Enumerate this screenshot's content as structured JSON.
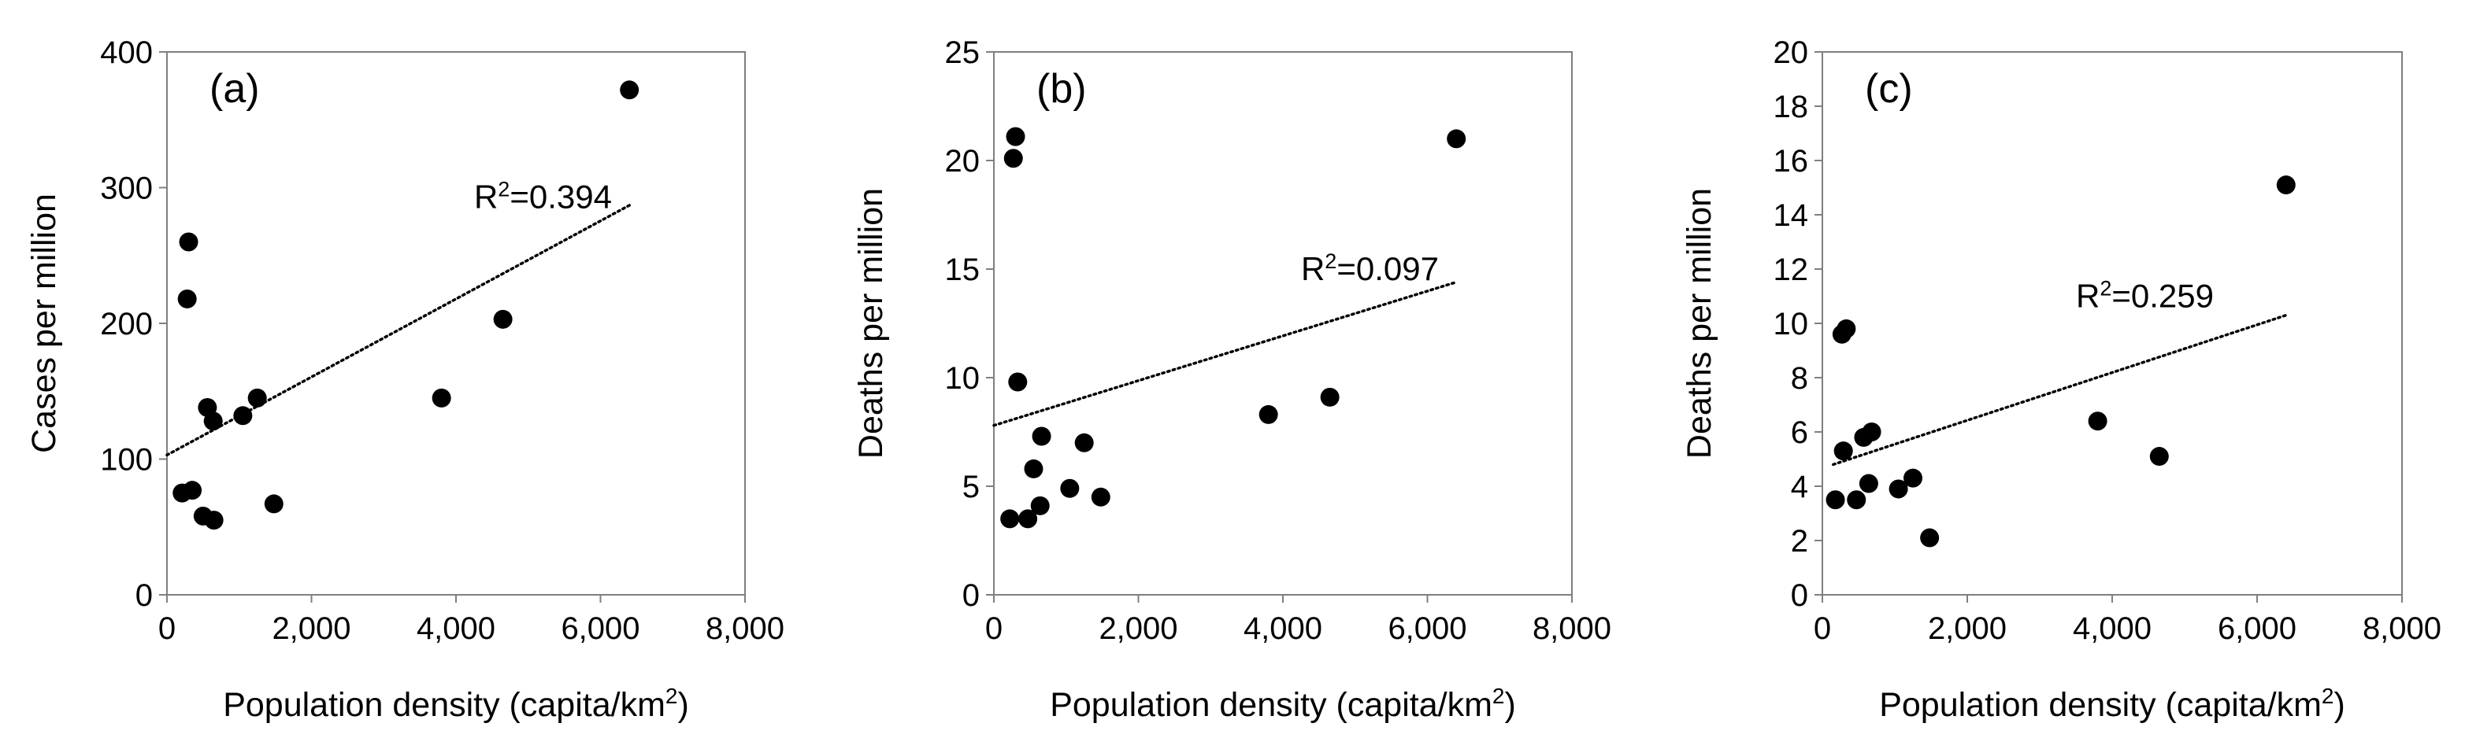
{
  "chart_data": [
    {
      "type": "scatter",
      "panel_label": "(a)",
      "xlabel": "Population density (capita/km",
      "xlabel_sup": "2",
      "xlabel_close": ")",
      "ylabel": "Cases per million",
      "xlim": [
        0,
        8000
      ],
      "ylim": [
        0,
        400
      ],
      "xticks": [
        0,
        2000,
        4000,
        6000,
        8000
      ],
      "xtick_labels": [
        "0",
        "2,000",
        "4,000",
        "6,000",
        "8,000"
      ],
      "yticks": [
        0,
        100,
        200,
        300,
        400
      ],
      "ytick_labels": [
        "0",
        "100",
        "200",
        "300",
        "400"
      ],
      "r2_prefix": "R",
      "r2_sup": "2",
      "r2_value": "=0.394",
      "r2_anchor": [
        4250,
        285
      ],
      "trendline": {
        "x": [
          0,
          6400
        ],
        "y": [
          103,
          287
        ]
      },
      "points": [
        {
          "x": 210,
          "y": 75
        },
        {
          "x": 280,
          "y": 218
        },
        {
          "x": 300,
          "y": 260
        },
        {
          "x": 350,
          "y": 77
        },
        {
          "x": 500,
          "y": 58
        },
        {
          "x": 560,
          "y": 138
        },
        {
          "x": 640,
          "y": 128
        },
        {
          "x": 650,
          "y": 55
        },
        {
          "x": 1050,
          "y": 132
        },
        {
          "x": 1250,
          "y": 145
        },
        {
          "x": 1480,
          "y": 67
        },
        {
          "x": 3800,
          "y": 145
        },
        {
          "x": 4650,
          "y": 203
        },
        {
          "x": 6400,
          "y": 372
        }
      ]
    },
    {
      "type": "scatter",
      "panel_label": "(b)",
      "xlabel": "Population density (capita/km",
      "xlabel_sup": "2",
      "xlabel_close": ")",
      "ylabel": "Deaths per million",
      "xlim": [
        0,
        8000
      ],
      "ylim": [
        0,
        25
      ],
      "xticks": [
        0,
        2000,
        4000,
        6000,
        8000
      ],
      "xtick_labels": [
        "0",
        "2,000",
        "4,000",
        "6,000",
        "8,000"
      ],
      "yticks": [
        0,
        5,
        10,
        15,
        20,
        25
      ],
      "ytick_labels": [
        "0",
        "5",
        "10",
        "15",
        "20",
        "25"
      ],
      "r2_prefix": "R",
      "r2_sup": "2",
      "r2_value": "=0.097",
      "r2_anchor": [
        4250,
        14.5
      ],
      "trendline": {
        "x": [
          0,
          6400
        ],
        "y": [
          7.8,
          14.4
        ]
      },
      "points": [
        {
          "x": 220,
          "y": 3.5
        },
        {
          "x": 270,
          "y": 20.1
        },
        {
          "x": 300,
          "y": 21.1
        },
        {
          "x": 330,
          "y": 9.8
        },
        {
          "x": 470,
          "y": 3.5
        },
        {
          "x": 550,
          "y": 5.8
        },
        {
          "x": 640,
          "y": 4.1
        },
        {
          "x": 660,
          "y": 7.3
        },
        {
          "x": 1050,
          "y": 4.9
        },
        {
          "x": 1250,
          "y": 7.0
        },
        {
          "x": 1480,
          "y": 4.5
        },
        {
          "x": 3800,
          "y": 8.3
        },
        {
          "x": 4650,
          "y": 9.1
        },
        {
          "x": 6400,
          "y": 21.0
        }
      ]
    },
    {
      "type": "scatter",
      "panel_label": "(c)",
      "xlabel": "Population density (capita/km",
      "xlabel_sup": "2",
      "xlabel_close": ")",
      "ylabel": "Deaths per million",
      "xlim": [
        0,
        8000
      ],
      "ylim": [
        0,
        20
      ],
      "xticks": [
        0,
        2000,
        4000,
        6000,
        8000
      ],
      "xtick_labels": [
        "0",
        "2,000",
        "4,000",
        "6,000",
        "8,000"
      ],
      "yticks": [
        0,
        2,
        4,
        6,
        8,
        10,
        12,
        14,
        16,
        18,
        20
      ],
      "ytick_labels": [
        "0",
        "2",
        "4",
        "6",
        "8",
        "10",
        "12",
        "14",
        "16",
        "18",
        "20"
      ],
      "r2_prefix": "R",
      "r2_sup": "2",
      "r2_value": "=0.259",
      "r2_anchor": [
        3500,
        10.6
      ],
      "trendline": {
        "x": [
          150,
          6400
        ],
        "y": [
          4.8,
          10.3
        ]
      },
      "points": [
        {
          "x": 180,
          "y": 3.5
        },
        {
          "x": 270,
          "y": 9.6
        },
        {
          "x": 290,
          "y": 5.3
        },
        {
          "x": 330,
          "y": 9.8
        },
        {
          "x": 470,
          "y": 3.5
        },
        {
          "x": 570,
          "y": 5.8
        },
        {
          "x": 640,
          "y": 4.1
        },
        {
          "x": 680,
          "y": 6.0
        },
        {
          "x": 1050,
          "y": 3.9
        },
        {
          "x": 1250,
          "y": 4.3
        },
        {
          "x": 1480,
          "y": 2.1
        },
        {
          "x": 3800,
          "y": 6.4
        },
        {
          "x": 4650,
          "y": 5.1
        },
        {
          "x": 6400,
          "y": 15.1
        }
      ]
    }
  ]
}
